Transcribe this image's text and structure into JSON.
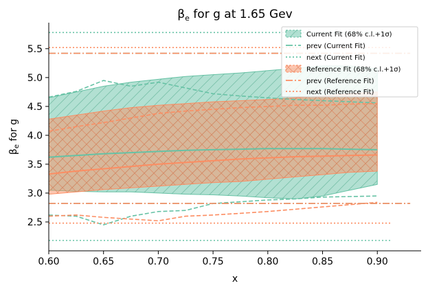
{
  "chart_data": {
    "type": "line",
    "title_main": "β",
    "title_sub": "e",
    "title_rest": " for g at 1.65 Gev",
    "xlabel": "x",
    "ylabel_main": "β",
    "ylabel_sub": "e",
    "ylabel_rest": " for g",
    "xlim": [
      0.6,
      0.94
    ],
    "ylim": [
      2.0,
      5.95
    ],
    "xticks": [
      0.6,
      0.65,
      0.7,
      0.75,
      0.8,
      0.85,
      0.9
    ],
    "xtick_labels": [
      "0.60",
      "0.65",
      "0.70",
      "0.75",
      "0.80",
      "0.85",
      "0.90"
    ],
    "yticks": [
      2.5,
      3.0,
      3.5,
      4.0,
      4.5,
      5.0,
      5.5
    ],
    "ytick_labels": [
      "2.5",
      "3.0",
      "3.5",
      "4.0",
      "4.5",
      "5.0",
      "5.5"
    ],
    "legend_position": "top-right",
    "colors": {
      "current": "#66c2a5",
      "reference": "#fc8d62"
    },
    "legend": [
      "Current Fit (68% c.l.+1σ)",
      "prev (Current Fit)",
      "next (Current Fit)",
      "Reference Fit (68% c.l.+1σ)",
      "prev (Reference Fit)",
      "next (Reference Fit)"
    ],
    "x": [
      0.6,
      0.625,
      0.65,
      0.675,
      0.7,
      0.725,
      0.75,
      0.775,
      0.8,
      0.825,
      0.85,
      0.875,
      0.9
    ],
    "series": [
      {
        "key": "current_upper",
        "values": [
          4.65,
          4.75,
          4.85,
          4.92,
          4.97,
          5.02,
          5.05,
          5.08,
          5.12,
          5.16,
          5.2,
          5.2,
          5.15
        ]
      },
      {
        "key": "current_lower",
        "values": [
          3.05,
          3.03,
          3.02,
          3.02,
          3.0,
          2.98,
          2.97,
          2.95,
          2.92,
          2.9,
          2.95,
          3.05,
          3.15
        ]
      },
      {
        "key": "current_central",
        "values": [
          3.62,
          3.65,
          3.68,
          3.7,
          3.72,
          3.74,
          3.75,
          3.76,
          3.77,
          3.77,
          3.77,
          3.76,
          3.75
        ]
      },
      {
        "key": "reference_upper",
        "values": [
          4.28,
          4.35,
          4.42,
          4.48,
          4.52,
          4.55,
          4.58,
          4.6,
          4.62,
          4.65,
          4.68,
          4.72,
          4.75
        ]
      },
      {
        "key": "reference_lower",
        "values": [
          2.98,
          3.02,
          3.06,
          3.09,
          3.12,
          3.15,
          3.18,
          3.2,
          3.24,
          3.28,
          3.32,
          3.36,
          3.38
        ]
      },
      {
        "key": "reference_central",
        "values": [
          3.33,
          3.38,
          3.42,
          3.46,
          3.5,
          3.53,
          3.56,
          3.59,
          3.61,
          3.63,
          3.64,
          3.65,
          3.66
        ]
      },
      {
        "key": "current_prev_upper",
        "values": [
          4.66,
          4.76,
          4.95,
          4.85,
          4.92,
          4.82,
          4.72,
          4.68,
          4.65,
          4.62,
          4.6,
          4.58,
          4.56
        ]
      },
      {
        "key": "current_prev_lower",
        "values": [
          2.62,
          2.6,
          2.45,
          2.6,
          2.68,
          2.7,
          2.82,
          2.85,
          2.88,
          2.9,
          2.93,
          2.94,
          2.95
        ]
      },
      {
        "key": "reference_prev_upper",
        "values": [
          4.07,
          4.15,
          4.22,
          4.3,
          4.38,
          4.42,
          4.45,
          4.48,
          4.5,
          4.52,
          4.52,
          4.54,
          4.55
        ]
      },
      {
        "key": "reference_prev_lower",
        "values": [
          2.6,
          2.62,
          2.58,
          2.55,
          2.52,
          2.6,
          2.62,
          2.65,
          2.68,
          2.72,
          2.76,
          2.8,
          2.84
        ]
      }
    ],
    "reference_lines": [
      {
        "key": "current_next_high",
        "y": 5.78,
        "x_range": [
          0.6,
          0.913
        ]
      },
      {
        "key": "current_next_low",
        "y": 2.18,
        "x_range": [
          0.6,
          0.913
        ]
      },
      {
        "key": "reference_next_high",
        "y": 5.52,
        "x_range": [
          0.6,
          0.913
        ]
      },
      {
        "key": "reference_next_low",
        "y": 2.48,
        "x_range": [
          0.6,
          0.913
        ]
      },
      {
        "key": "current_prev_high",
        "y": 5.42,
        "x_range": [
          0.6,
          0.93
        ]
      },
      {
        "key": "current_prev_low",
        "y": 2.82,
        "x_range": [
          0.6,
          0.93
        ]
      },
      {
        "key": "reference_prev_high",
        "y": 5.42,
        "x_range": [
          0.6,
          0.93
        ]
      },
      {
        "key": "reference_prev_low",
        "y": 2.82,
        "x_range": [
          0.6,
          0.93
        ]
      }
    ]
  }
}
